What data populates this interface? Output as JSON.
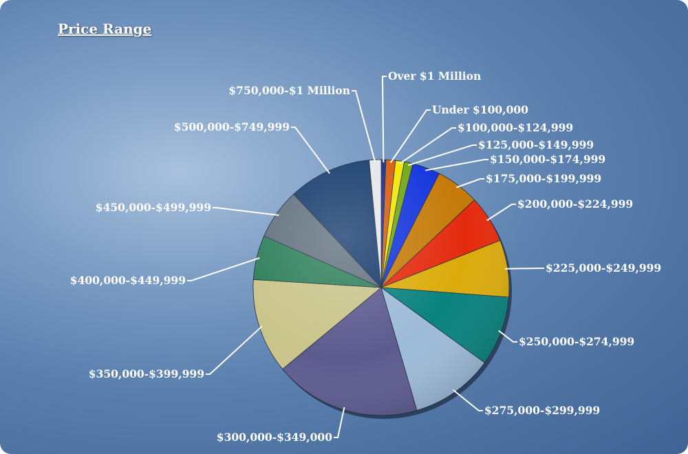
{
  "colors": {
    "background": "#5a7fae",
    "text": "#ffffff"
  },
  "chart_data": {
    "type": "pie",
    "title": "Price Range",
    "legend": "none",
    "unit": "percent",
    "slices": [
      {
        "label": "Over $1 Million",
        "value": 0.6,
        "color": "#1a2a8a"
      },
      {
        "label": "Under $100,000",
        "value": 1.2,
        "color": "#d95a0b"
      },
      {
        "label": "$100,000-$124,999",
        "value": 1.1,
        "color": "#f2e600"
      },
      {
        "label": "$125,000-$149,999",
        "value": 1.1,
        "color": "#6ea512"
      },
      {
        "label": "$150,000-$174,999",
        "value": 3.5,
        "color": "#1133dd"
      },
      {
        "label": "$175,000-$199,999",
        "value": 5.5,
        "color": "#c57a08"
      },
      {
        "label": "$200,000-$224,999",
        "value": 6.0,
        "color": "#e42a0d"
      },
      {
        "label": "$225,000-$249,999",
        "value": 7.2,
        "color": "#dcac0c"
      },
      {
        "label": "$250,000-$274,999",
        "value": 8.8,
        "color": "#0a827e"
      },
      {
        "label": "$275,000-$299,999",
        "value": 10.5,
        "color": "#9dbbd8"
      },
      {
        "label": "$300,000-$349,000",
        "value": 18.5,
        "color": "#5c5b8f"
      },
      {
        "label": "$350,000-$399,999",
        "value": 12.0,
        "color": "#c9c48a"
      },
      {
        "label": "$400,000-$449,999",
        "value": 5.6,
        "color": "#2c7e59"
      },
      {
        "label": "$450,000-$499,999",
        "value": 6.4,
        "color": "#61707e"
      },
      {
        "label": "$500,000-$749,999",
        "value": 10.5,
        "color": "#143a6b"
      },
      {
        "label": "$750,000-$1 Million",
        "value": 1.5,
        "color": "#e4e6ea"
      }
    ]
  }
}
